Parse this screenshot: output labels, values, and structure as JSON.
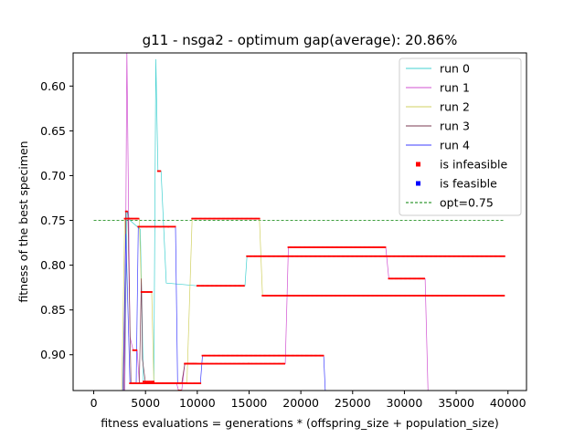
{
  "chart_data": {
    "type": "line",
    "title": "g11  -  nsga2  -  optimum gap(average): 20.86%",
    "xlabel": "fitness evaluations = generations * (offspring_size + population_size)",
    "ylabel": "fitness of the best specimen",
    "xlim": [
      -1990,
      41790
    ],
    "ylim": [
      0.94,
      0.563
    ],
    "y_inverted": true,
    "xticks": [
      0,
      5000,
      10000,
      15000,
      20000,
      25000,
      30000,
      35000,
      40000
    ],
    "yticks": [
      0.6,
      0.65,
      0.7,
      0.75,
      0.8,
      0.85,
      0.9
    ],
    "grid": false,
    "legend_position": "top-right",
    "series": [
      {
        "name": "run 0",
        "color": "#40d0d0",
        "points": [
          [
            3000,
            0.95
          ],
          [
            3200,
            0.74
          ],
          [
            3500,
            0.75
          ],
          [
            4500,
            0.76
          ],
          [
            4800,
            0.93
          ],
          [
            5800,
            0.93
          ],
          [
            6000,
            0.57
          ],
          [
            6200,
            0.695
          ],
          [
            6500,
            0.695
          ],
          [
            7000,
            0.82
          ],
          [
            10000,
            0.823
          ],
          [
            14600,
            0.823
          ],
          [
            14800,
            0.79
          ],
          [
            39700,
            0.79
          ]
        ]
      },
      {
        "name": "run 1",
        "color": "#d050d0",
        "points": [
          [
            3000,
            0.95
          ],
          [
            3200,
            0.56
          ],
          [
            3500,
            0.88
          ],
          [
            3800,
            0.895
          ],
          [
            4200,
            0.895
          ],
          [
            4400,
            0.932
          ],
          [
            5500,
            0.932
          ],
          [
            5800,
            0.932
          ],
          [
            8000,
            0.932
          ],
          [
            8200,
            0.94
          ],
          [
            8500,
            0.94
          ],
          [
            8800,
            0.91
          ],
          [
            15000,
            0.91
          ],
          [
            18500,
            0.91
          ],
          [
            18800,
            0.78
          ],
          [
            28200,
            0.78
          ],
          [
            28500,
            0.815
          ],
          [
            32000,
            0.815
          ],
          [
            32300,
            0.95
          ]
        ]
      },
      {
        "name": "run 2",
        "color": "#d0d060",
        "points": [
          [
            2700,
            0.95
          ],
          [
            3000,
            0.748
          ],
          [
            4400,
            0.748
          ],
          [
            4600,
            0.83
          ],
          [
            5600,
            0.83
          ],
          [
            5800,
            0.932
          ],
          [
            9000,
            0.932
          ],
          [
            9500,
            0.748
          ],
          [
            16000,
            0.748
          ],
          [
            16300,
            0.834
          ],
          [
            39700,
            0.834
          ]
        ]
      },
      {
        "name": "run 3",
        "color": "#7a3a50",
        "points": [
          [
            2900,
            0.95
          ],
          [
            3100,
            0.74
          ],
          [
            3300,
            0.74
          ],
          [
            3600,
            0.932
          ],
          [
            4400,
            0.932
          ],
          [
            4600,
            0.815
          ],
          [
            4700,
            0.905
          ],
          [
            5000,
            0.932
          ],
          [
            8500,
            0.932
          ],
          [
            8800,
            0.91
          ],
          [
            10000,
            0.91
          ]
        ]
      },
      {
        "name": "run 4",
        "color": "#3c3cff",
        "points": [
          [
            2800,
            0.95
          ],
          [
            3100,
            0.765
          ],
          [
            3500,
            0.932
          ],
          [
            4100,
            0.932
          ],
          [
            4300,
            0.757
          ],
          [
            7200,
            0.757
          ],
          [
            7900,
            0.757
          ],
          [
            8100,
            0.932
          ],
          [
            10300,
            0.932
          ],
          [
            10500,
            0.901
          ],
          [
            22200,
            0.901
          ],
          [
            22400,
            0.95
          ]
        ]
      }
    ],
    "markers": [
      {
        "name": "is infeasible",
        "color": "#ff0000"
      },
      {
        "name": "is feasible",
        "color": "#0000ff"
      }
    ],
    "reference_line": {
      "name": "opt=0.75",
      "y": 0.75,
      "color": "#008000",
      "x_range": [
        0,
        39700
      ]
    }
  }
}
